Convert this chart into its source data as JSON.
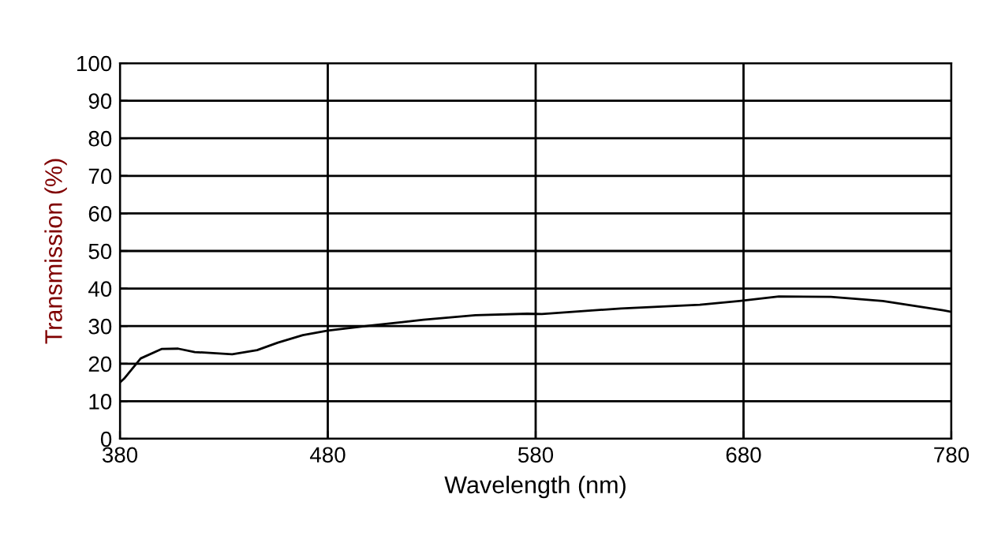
{
  "chart_data": {
    "type": "line",
    "xlabel": "Wavelength (nm)",
    "ylabel": "Transmission (%)",
    "x": [
      380,
      382,
      390,
      400,
      408,
      416,
      434,
      446,
      456,
      468,
      480,
      500,
      526,
      551,
      576,
      583,
      621,
      659,
      678,
      697,
      722,
      747,
      776,
      780
    ],
    "series": [
      {
        "color": "#000000",
        "values": [
          15,
          16,
          21.4,
          23.9,
          24,
          23.1,
          22.5,
          23.6,
          25.6,
          27.6,
          28.8,
          30.1,
          31.7,
          32.9,
          33.3,
          33.2,
          34.7,
          35.7,
          36.7,
          37.9,
          37.8,
          36.7,
          34.2,
          33.8
        ]
      }
    ],
    "xlim": [
      380,
      780
    ],
    "ylim": [
      0,
      100
    ],
    "xticks": [
      380,
      480,
      580,
      680,
      780
    ],
    "yticks": [
      0,
      10,
      20,
      30,
      40,
      50,
      60,
      70,
      80,
      90,
      100
    ],
    "grid": true,
    "legend": false
  }
}
